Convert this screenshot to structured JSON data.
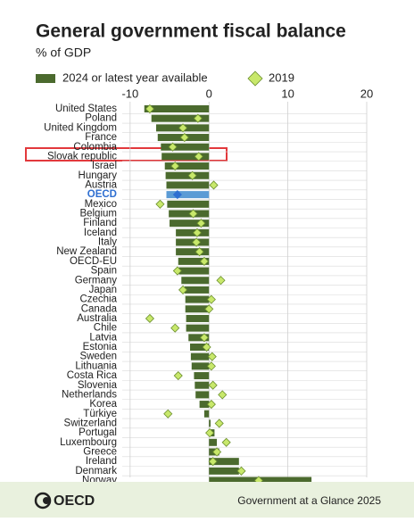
{
  "chart_data": {
    "type": "bar",
    "orientation": "horizontal",
    "title": "General government fiscal balance",
    "subtitle": "% of GDP",
    "categories": [
      "United States",
      "Poland",
      "United Kingdom",
      "France",
      "Colombia",
      "Slovak republic",
      "Israel",
      "Hungary",
      "Austria",
      "OECD",
      "Mexico",
      "Belgium",
      "Finland",
      "Iceland",
      "Italy",
      "New Zealand",
      "OECD-EU",
      "Spain",
      "Germany",
      "Japan",
      "Czechia",
      "Canada",
      "Australia",
      "Chile",
      "Latvia",
      "Estonia",
      "Sweden",
      "Lithuania",
      "Costa Rica",
      "Slovenia",
      "Netherlands",
      "Korea",
      "Türkiye",
      "Switzerland",
      "Portugal",
      "Luxembourg",
      "Greece",
      "Ireland",
      "Denmark",
      "Norway"
    ],
    "series": [
      {
        "name": "2024 or latest year available",
        "color": "#4b6a2e",
        "marker": "bar",
        "values": [
          -8.2,
          -7.3,
          -6.7,
          -6.5,
          -6.1,
          -6.0,
          -5.6,
          -5.5,
          -5.4,
          -5.4,
          -5.3,
          -5.1,
          -5.0,
          -4.2,
          -4.2,
          -4.2,
          -3.9,
          -3.8,
          -3.5,
          -3.1,
          -3.0,
          -3.0,
          -2.9,
          -2.9,
          -2.6,
          -2.4,
          -2.3,
          -2.2,
          -1.9,
          -1.8,
          -1.7,
          -1.2,
          -0.6,
          0.2,
          0.7,
          1.0,
          1.3,
          3.8,
          3.8,
          13.0
        ]
      },
      {
        "name": "2019",
        "color": "#c8e86b",
        "marker": "diamond",
        "values": [
          -7.5,
          -1.4,
          -3.3,
          -3.1,
          -4.6,
          -1.3,
          -4.3,
          -2.1,
          0.6,
          -4.0,
          -6.2,
          -2.0,
          -1.0,
          -1.5,
          -1.6,
          -1.2,
          -0.6,
          -4.0,
          1.5,
          -3.3,
          0.3,
          0.0,
          -7.5,
          -4.3,
          -0.6,
          -0.3,
          0.4,
          0.3,
          -3.9,
          0.5,
          1.7,
          0.3,
          -5.2,
          1.3,
          0.1,
          2.2,
          1.0,
          0.5,
          4.1,
          6.3
        ]
      }
    ],
    "xlim": [
      -11,
      20
    ],
    "xticks": [
      -10,
      0,
      10,
      20
    ],
    "grid": true
  },
  "footer": {
    "logo": "OECD",
    "source": "Government at a Glance 2025"
  }
}
